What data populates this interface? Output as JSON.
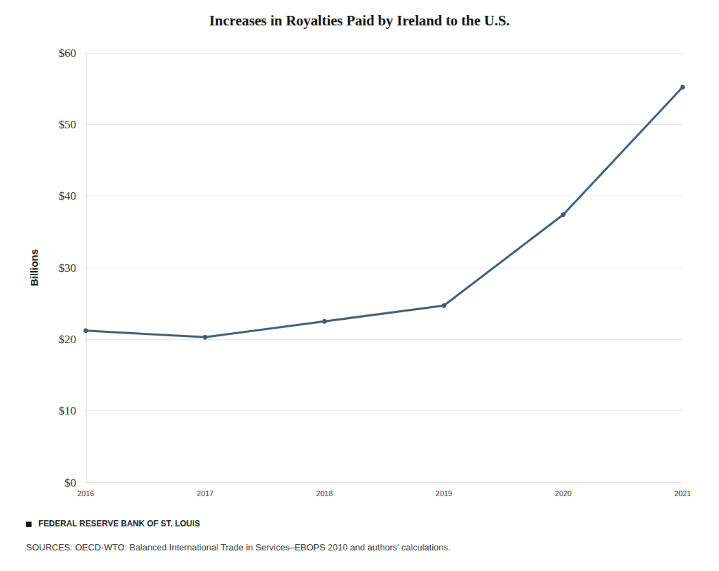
{
  "chart_data": {
    "type": "line",
    "title": "Increases in Royalties Paid by Ireland to the U.S.",
    "y_label": "Billions",
    "categories": [
      "2016",
      "2017",
      "2018",
      "2019",
      "2020",
      "2021"
    ],
    "values": [
      21.2,
      20.3,
      22.5,
      24.7,
      37.4,
      55.2
    ],
    "color": "#3e5a73",
    "marker": "circle",
    "ylim": [
      0,
      60
    ],
    "yticks": [
      {
        "value": 0,
        "label": "$0"
      },
      {
        "value": 10,
        "label": "$10"
      },
      {
        "value": 20,
        "label": "$20"
      },
      {
        "value": 30,
        "label": "$30"
      },
      {
        "value": 40,
        "label": "$40"
      },
      {
        "value": 50,
        "label": "$50"
      },
      {
        "value": 60,
        "label": "$60"
      }
    ],
    "grid": true,
    "annotations": [
      "FEDERAL RESERVE BANK OF ST. LOUIS",
      "SOURCES: OECD-WTO: Balanced International Trade in Services–EBOPS 2010 and authors' calculations."
    ]
  }
}
